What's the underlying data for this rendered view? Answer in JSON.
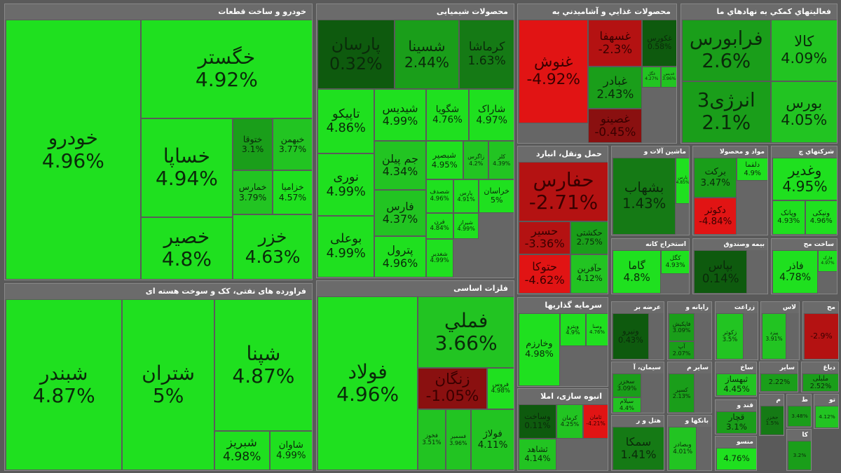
{
  "chart_data": {
    "type": "heatmap",
    "title": "",
    "sectors": [
      {
        "name": "خودرو و ساخت قطعات",
        "tiles": [
          {
            "name": "خودرو",
            "value": 4.96
          },
          {
            "name": "خگستر",
            "value": 4.92
          },
          {
            "name": "خساپا",
            "value": 4.94
          },
          {
            "name": "خصیر",
            "value": 4.8
          },
          {
            "name": "ختوقا",
            "value": 3.1
          },
          {
            "name": "خبهمن",
            "value": 3.77
          },
          {
            "name": "خمارس",
            "value": 3.79
          },
          {
            "name": "خزامیا",
            "value": 4.57
          },
          {
            "name": "خزر",
            "value": 4.63
          }
        ]
      },
      {
        "name": "فراورده های نفتی، کک و سوخت هسته ای",
        "tiles": [
          {
            "name": "شبندر",
            "value": 4.87
          },
          {
            "name": "شتران",
            "value": 5
          },
          {
            "name": "شپنا",
            "value": 4.87
          },
          {
            "name": "شبریز",
            "value": 4.98
          },
          {
            "name": "شاوان",
            "value": 4.99
          }
        ]
      },
      {
        "name": "محصولات شیمیایی",
        "tiles": [
          {
            "name": "پارسان",
            "value": 0.32
          },
          {
            "name": "شسینا",
            "value": 2.44
          },
          {
            "name": "کرماشا",
            "value": 1.63
          },
          {
            "name": "تاپیکو",
            "value": 4.86
          },
          {
            "name": "شیدیس",
            "value": 4.99
          },
          {
            "name": "شگویا",
            "value": 4.76
          },
          {
            "name": "شاراک",
            "value": 4.97
          },
          {
            "name": "نوری",
            "value": 4.99
          },
          {
            "name": "جم پیلن",
            "value": 4.34
          },
          {
            "name": "شبصیر",
            "value": 4.95
          },
          {
            "name": "زاگرس",
            "value": 4.2
          },
          {
            "name": "کلر",
            "value": 4.39
          },
          {
            "name": "بوعلی",
            "value": 4.99
          },
          {
            "name": "فارس",
            "value": 4.37
          },
          {
            "name": "پترول",
            "value": 4.96
          },
          {
            "name": "شصدف",
            "value": 4.96
          },
          {
            "name": "فرن",
            "value": 4.84
          },
          {
            "name": "شیراز",
            "value": 4.99
          },
          {
            "name": "شغدیر",
            "value": 4.99
          },
          {
            "name": "پارس",
            "value": 4.91
          },
          {
            "name": "خراسان",
            "value": 5
          }
        ]
      },
      {
        "name": "فلزات اساسی",
        "tiles": [
          {
            "name": "فولاد",
            "value": 4.96
          },
          {
            "name": "فملي",
            "value": 3.66
          },
          {
            "name": "زنگان",
            "value": -1.05
          },
          {
            "name": "فروس",
            "value": 4.98
          },
          {
            "name": "فخوز",
            "value": 3.51
          },
          {
            "name": "فسمیر",
            "value": 3.96
          },
          {
            "name": "فولاژ",
            "value": 4.11
          }
        ]
      },
      {
        "name": "محصولات غذايي و آشاميدني به",
        "tiles": [
          {
            "name": "غنوش",
            "value": -4.92
          },
          {
            "name": "غسهفا",
            "value": -2.3
          },
          {
            "name": "غكورس",
            "value": 0.58
          },
          {
            "name": "غبادر",
            "value": 2.43
          },
          {
            "name": "غگل",
            "value": 4.27
          },
          {
            "name": "غدیس",
            "value": 3.96
          },
          {
            "name": "غصینو",
            "value": -0.45
          }
        ]
      },
      {
        "name": "فعاليتهاي كمكي به نهادهاي ما",
        "tiles": [
          {
            "name": "فرابورس",
            "value": 2.6
          },
          {
            "name": "کالا",
            "value": 4.09
          },
          {
            "name": "انرژی3",
            "value": 2.1
          },
          {
            "name": "بورس",
            "value": 4.05
          }
        ]
      },
      {
        "name": "حمل ونقل، انبارد",
        "tiles": [
          {
            "name": "حفارس",
            "value": -2.71
          },
          {
            "name": "حسیر",
            "value": -3.36
          },
          {
            "name": "حکشتی",
            "value": 2.75
          },
          {
            "name": "حتوکا",
            "value": -4.62
          },
          {
            "name": "حآفرین",
            "value": 4.12
          }
        ]
      },
      {
        "name": "ماشین آلات و",
        "tiles": [
          {
            "name": "بشهاب",
            "value": 1.43
          },
          {
            "name": "پارس",
            "value": 4.85
          }
        ]
      },
      {
        "name": "مواد و محصولا",
        "tiles": [
          {
            "name": "برکت",
            "value": 3.47
          },
          {
            "name": "دکوثر",
            "value": -4.84
          },
          {
            "name": "دلقما",
            "value": 4.9
          }
        ]
      },
      {
        "name": "شرکتهاي چ",
        "tiles": [
          {
            "name": "وغدیر",
            "value": 4.95
          },
          {
            "name": "وپانک",
            "value": 4.93
          },
          {
            "name": "ونیکی",
            "value": 4.96
          }
        ]
      },
      {
        "name": "استخراج کانه",
        "tiles": [
          {
            "name": "گاما",
            "value": 4.8
          },
          {
            "name": "کگل",
            "value": 4.93
          }
        ]
      },
      {
        "name": "بیمه وصندوق",
        "tiles": [
          {
            "name": "بپاس",
            "value": 0.14
          }
        ]
      },
      {
        "name": "ساخت مح",
        "tiles": [
          {
            "name": "فاذر",
            "value": 4.78
          },
          {
            "name": "فارک",
            "value": 4.97
          }
        ]
      },
      {
        "name": "سرمایه گذاریها",
        "tiles": [
          {
            "name": "وخارزم",
            "value": 4.98
          },
          {
            "name": "وپترو",
            "value": 4.9
          },
          {
            "name": "وصنا",
            "value": 4.76
          }
        ]
      },
      {
        "name": "عرضه بر",
        "tiles": [
          {
            "name": "ونیرو",
            "value": 0.43
          }
        ]
      },
      {
        "name": "رایانه و",
        "tiles": [
          {
            "name": "فاپکیش",
            "value": 3.09
          },
          {
            "name": "آپ",
            "value": 2.07
          }
        ]
      },
      {
        "name": "زراعت",
        "tiles": [
          {
            "name": "زکوثر",
            "value": 3.5
          }
        ]
      },
      {
        "name": "لاس",
        "tiles": [
          {
            "name": "پیزد",
            "value": 3.91
          }
        ]
      },
      {
        "name": "مح",
        "tiles": [
          {
            "name": "",
            "value": -2.9
          }
        ]
      },
      {
        "name": "سیمان، آ",
        "tiles": [
          {
            "name": "سخزر",
            "value": 3.09
          },
          {
            "name": "سیلام",
            "value": 4.4
          }
        ]
      },
      {
        "name": "سایر م",
        "tiles": [
          {
            "name": "کسپر",
            "value": 2.13
          }
        ]
      },
      {
        "name": "ساخ",
        "tiles": [
          {
            "name": "ثبهساز",
            "value": 4.45
          }
        ]
      },
      {
        "name": "سایر",
        "tiles": [
          {
            "name": "",
            "value": 2.22
          }
        ]
      },
      {
        "name": "دباغ",
        "tiles": [
          {
            "name": "ملبلی",
            "value": 2.52
          }
        ]
      },
      {
        "name": "انبوه سازی، املا",
        "tiles": [
          {
            "name": "وساخت",
            "value": 0.11
          },
          {
            "name": "کرمان",
            "value": 4.25
          },
          {
            "name": "ثامان",
            "value": -4.21
          },
          {
            "name": "ثشاهد",
            "value": 4.14
          }
        ]
      },
      {
        "name": "هتل و ر",
        "tiles": [
          {
            "name": "سمکا",
            "value": 1.41
          }
        ]
      },
      {
        "name": "بانکها و",
        "tiles": [
          {
            "name": "وبصادر",
            "value": 4.01
          }
        ]
      },
      {
        "name": "قند و",
        "tiles": [
          {
            "name": "قچار",
            "value": 3.1
          }
        ]
      },
      {
        "name": "منسو",
        "tiles": [
          {
            "name": "",
            "value": 4.76
          }
        ]
      },
      {
        "name": "م",
        "tiles": [
          {
            "name": "حخزر",
            "value": 1.5
          }
        ]
      },
      {
        "name": "ط",
        "tiles": [
          {
            "name": "",
            "value": 3.48
          }
        ]
      },
      {
        "name": "تو",
        "tiles": [
          {
            "name": "",
            "value": 4.12
          }
        ]
      },
      {
        "name": "کا",
        "tiles": [
          {
            "name": "",
            "value": 3.2
          }
        ]
      }
    ]
  }
}
